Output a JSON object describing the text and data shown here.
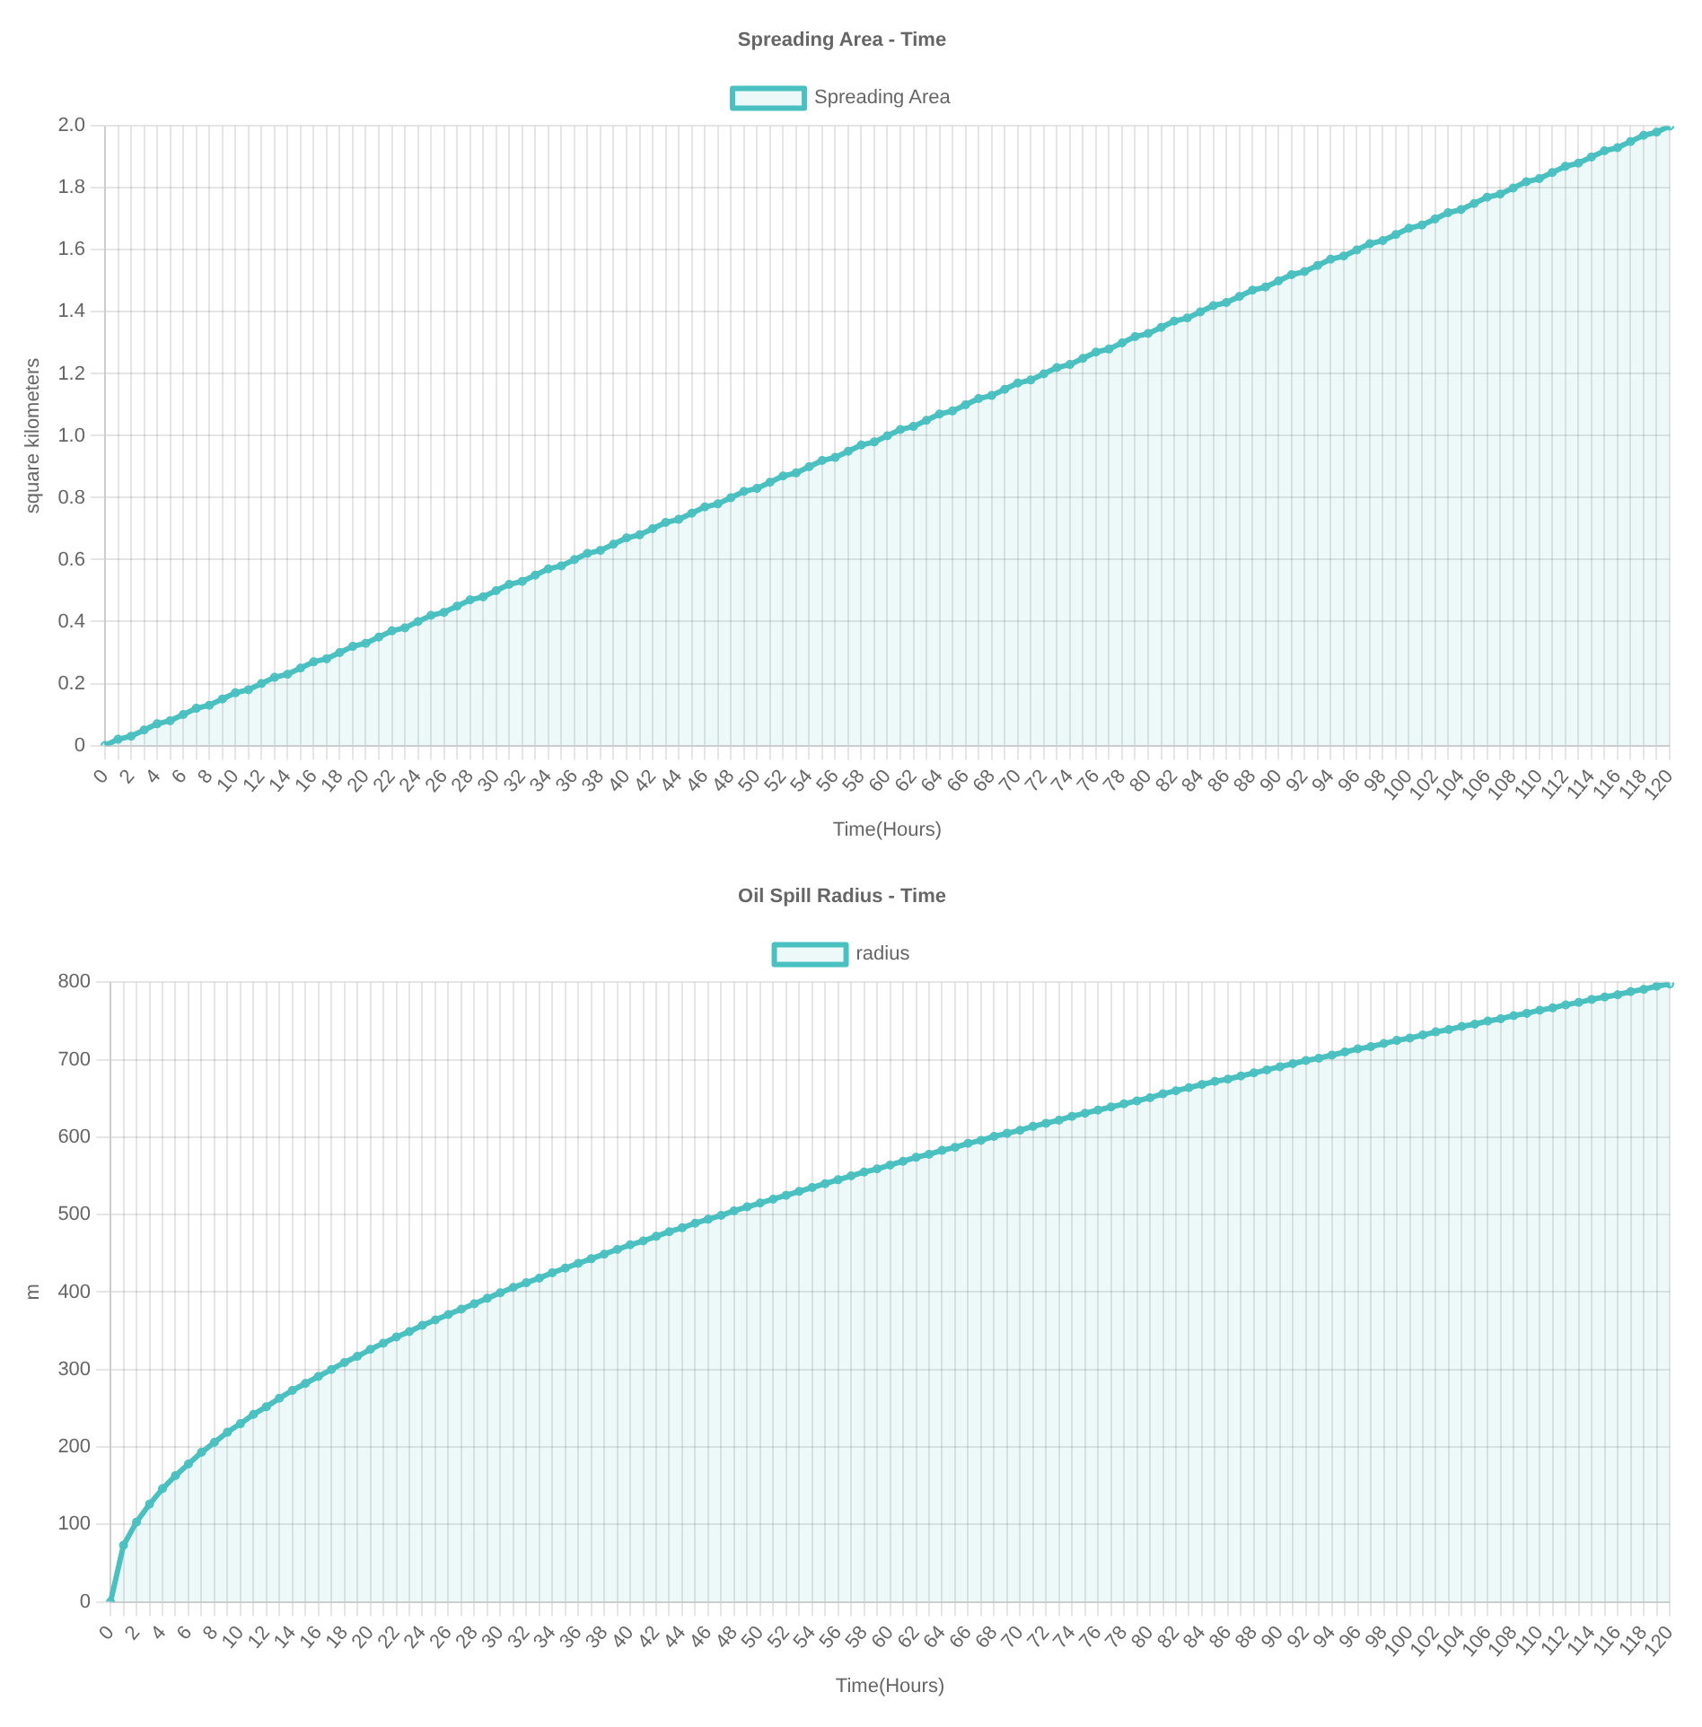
{
  "chart_data": [
    {
      "type": "area",
      "title": "Spreading Area - Time",
      "xlabel": "Time(Hours)",
      "ylabel": "square kilometers",
      "legend": "top",
      "grid": true,
      "marker": "circle",
      "categories": [
        "0",
        null,
        "2",
        null,
        "4",
        null,
        "6",
        null,
        "8",
        null,
        "10",
        null,
        "12",
        null,
        "14",
        null,
        "16",
        null,
        "18",
        null,
        "20",
        null,
        "22",
        null,
        "24",
        null,
        "26",
        null,
        "28",
        null,
        "30",
        null,
        "32",
        null,
        "34",
        null,
        "36",
        null,
        "38",
        null,
        "40",
        null,
        "42",
        null,
        "44",
        null,
        "46",
        null,
        "48",
        null,
        "50",
        null,
        "52",
        null,
        "54",
        null,
        "56",
        null,
        "58",
        null,
        "60",
        null,
        "62",
        null,
        "64",
        null,
        "66",
        null,
        "68",
        null,
        "70",
        null,
        "72",
        null,
        "74",
        null,
        "76",
        null,
        "78",
        null,
        "80",
        null,
        "82",
        null,
        "84",
        null,
        "86",
        null,
        "88",
        null,
        "90",
        null,
        "92",
        null,
        "94",
        null,
        "96",
        null,
        "98",
        null,
        "100",
        null,
        "102",
        null,
        "104",
        null,
        "106",
        null,
        "108",
        null,
        "110",
        null,
        "112",
        null,
        "114",
        null,
        "116",
        null,
        "118",
        null,
        "120"
      ],
      "ylim": [
        0,
        2
      ],
      "yticks": [
        0,
        0.2,
        0.4,
        0.6,
        0.8,
        {
          "value": 1,
          "label": "1.0"
        },
        1.2,
        1.4,
        1.6,
        1.8,
        {
          "value": 2,
          "label": "2.0"
        }
      ],
      "series": [
        {
          "name": "Spreading Area",
          "color": "#4bc0c0",
          "values": [
            0,
            0.02,
            0.03,
            0.05,
            0.07,
            0.08,
            0.1,
            0.12,
            0.13,
            0.15,
            0.17,
            0.18,
            0.2,
            0.22,
            0.23,
            0.25,
            0.27,
            0.28,
            0.3,
            0.32,
            0.33,
            0.35,
            0.37,
            0.38,
            0.4,
            0.42,
            0.43,
            0.45,
            0.47,
            0.48,
            0.5,
            0.52,
            0.53,
            0.55,
            0.57,
            0.58,
            0.6,
            0.62,
            0.63,
            0.65,
            0.67,
            0.68,
            0.7,
            0.72,
            0.73,
            0.75,
            0.77,
            0.78,
            0.8,
            0.82,
            0.83,
            0.85,
            0.87,
            0.88,
            0.9,
            0.92,
            0.93,
            0.95,
            0.97,
            0.98,
            1,
            1.02,
            1.03,
            1.05,
            1.07,
            1.08,
            1.1,
            1.12,
            1.13,
            1.15,
            1.17,
            1.18,
            1.2,
            1.22,
            1.23,
            1.25,
            1.27,
            1.28,
            1.3,
            1.32,
            1.33,
            1.35,
            1.37,
            1.38,
            1.4,
            1.42,
            1.43,
            1.45,
            1.47,
            1.48,
            1.5,
            1.52,
            1.53,
            1.55,
            1.57,
            1.58,
            1.6,
            1.62,
            1.63,
            1.65,
            1.67,
            1.68,
            1.7,
            1.72,
            1.73,
            1.75,
            1.77,
            1.78,
            1.8,
            1.82,
            1.83,
            1.85,
            1.87,
            1.88,
            1.9,
            1.92,
            1.93,
            1.95,
            1.97,
            1.98,
            2
          ]
        }
      ]
    },
    {
      "type": "area",
      "title": "Oil Spill Radius - Time",
      "xlabel": "Time(Hours)",
      "ylabel": "m",
      "legend": "top",
      "grid": true,
      "marker": "circle",
      "categories": [
        "0",
        null,
        "2",
        null,
        "4",
        null,
        "6",
        null,
        "8",
        null,
        "10",
        null,
        "12",
        null,
        "14",
        null,
        "16",
        null,
        "18",
        null,
        "20",
        null,
        "22",
        null,
        "24",
        null,
        "26",
        null,
        "28",
        null,
        "30",
        null,
        "32",
        null,
        "34",
        null,
        "36",
        null,
        "38",
        null,
        "40",
        null,
        "42",
        null,
        "44",
        null,
        "46",
        null,
        "48",
        null,
        "50",
        null,
        "52",
        null,
        "54",
        null,
        "56",
        null,
        "58",
        null,
        "60",
        null,
        "62",
        null,
        "64",
        null,
        "66",
        null,
        "68",
        null,
        "70",
        null,
        "72",
        null,
        "74",
        null,
        "76",
        null,
        "78",
        null,
        "80",
        null,
        "82",
        null,
        "84",
        null,
        "86",
        null,
        "88",
        null,
        "90",
        null,
        "92",
        null,
        "94",
        null,
        "96",
        null,
        "98",
        null,
        "100",
        null,
        "102",
        null,
        "104",
        null,
        "106",
        null,
        "108",
        null,
        "110",
        null,
        "112",
        null,
        "114",
        null,
        "116",
        null,
        "118",
        null,
        "120"
      ],
      "ylim": [
        0,
        800
      ],
      "yticks": [
        0,
        100,
        200,
        300,
        400,
        500,
        600,
        700,
        800
      ],
      "series": [
        {
          "name": "radius",
          "color": "#4bc0c0",
          "values": [
            0,
            73,
            103,
            126,
            146,
            163,
            178,
            193,
            206,
            219,
            230,
            242,
            252,
            263,
            273,
            282,
            291,
            300,
            309,
            317,
            326,
            334,
            342,
            349,
            357,
            364,
            371,
            378,
            385,
            392,
            399,
            406,
            412,
            418,
            425,
            431,
            437,
            443,
            449,
            455,
            461,
            466,
            472,
            478,
            483,
            489,
            494,
            499,
            505,
            510,
            515,
            520,
            525,
            530,
            535,
            540,
            545,
            550,
            555,
            559,
            564,
            569,
            574,
            578,
            583,
            587,
            592,
            596,
            601,
            605,
            609,
            614,
            618,
            622,
            627,
            631,
            635,
            639,
            643,
            647,
            651,
            656,
            660,
            664,
            668,
            672,
            675,
            679,
            683,
            687,
            691,
            695,
            699,
            702,
            706,
            710,
            714,
            717,
            721,
            725,
            728,
            732,
            736,
            739,
            743,
            746,
            750,
            753,
            757,
            760,
            764,
            767,
            771,
            774,
            778,
            781,
            784,
            788,
            791,
            795,
            798
          ]
        }
      ]
    }
  ]
}
